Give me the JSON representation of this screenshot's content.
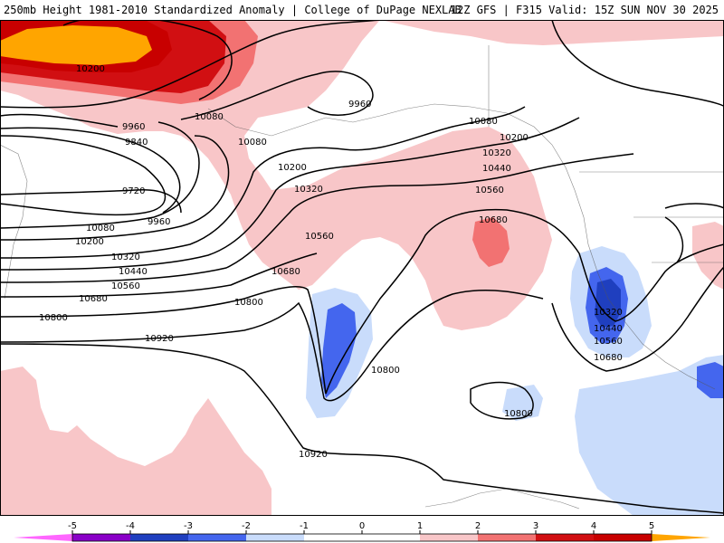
{
  "header": {
    "title": "250mb Height 1981-2010 Standardized Anomaly | College of DuPage NEXLAB",
    "run": "12Z GFS | F315 Valid: 15Z SUN NOV 30 2025"
  },
  "anomaly_colors": {
    "neg5": "#ff66ff",
    "neg4": "#8a00c8",
    "neg3": "#1f3fbf",
    "neg2": "#4466ee",
    "neg1": "#c9dcfb",
    "zero": "#ffffff",
    "pos1": "#f8c6c8",
    "pos2": "#f27272",
    "pos3": "#d10f12",
    "pos4": "#c80000",
    "pos5": "#ffa500"
  },
  "contours": {
    "labels": [
      "10200",
      "10080",
      "9960",
      "9840",
      "9720",
      "9960",
      "10080",
      "10200",
      "10320",
      "10440",
      "10560",
      "10680",
      "10800",
      "10920",
      "10080",
      "10200",
      "10320",
      "10560",
      "10680",
      "10800",
      "9960",
      "10080",
      "10200",
      "10320",
      "10440",
      "10560",
      "10680",
      "10800",
      "10320",
      "10440",
      "10560",
      "10680",
      "10800",
      "10920"
    ]
  },
  "legend": {
    "ticks": [
      "-5",
      "-4",
      "-3",
      "-2",
      "-1",
      "0",
      "1",
      "2",
      "3",
      "4",
      "5"
    ]
  }
}
